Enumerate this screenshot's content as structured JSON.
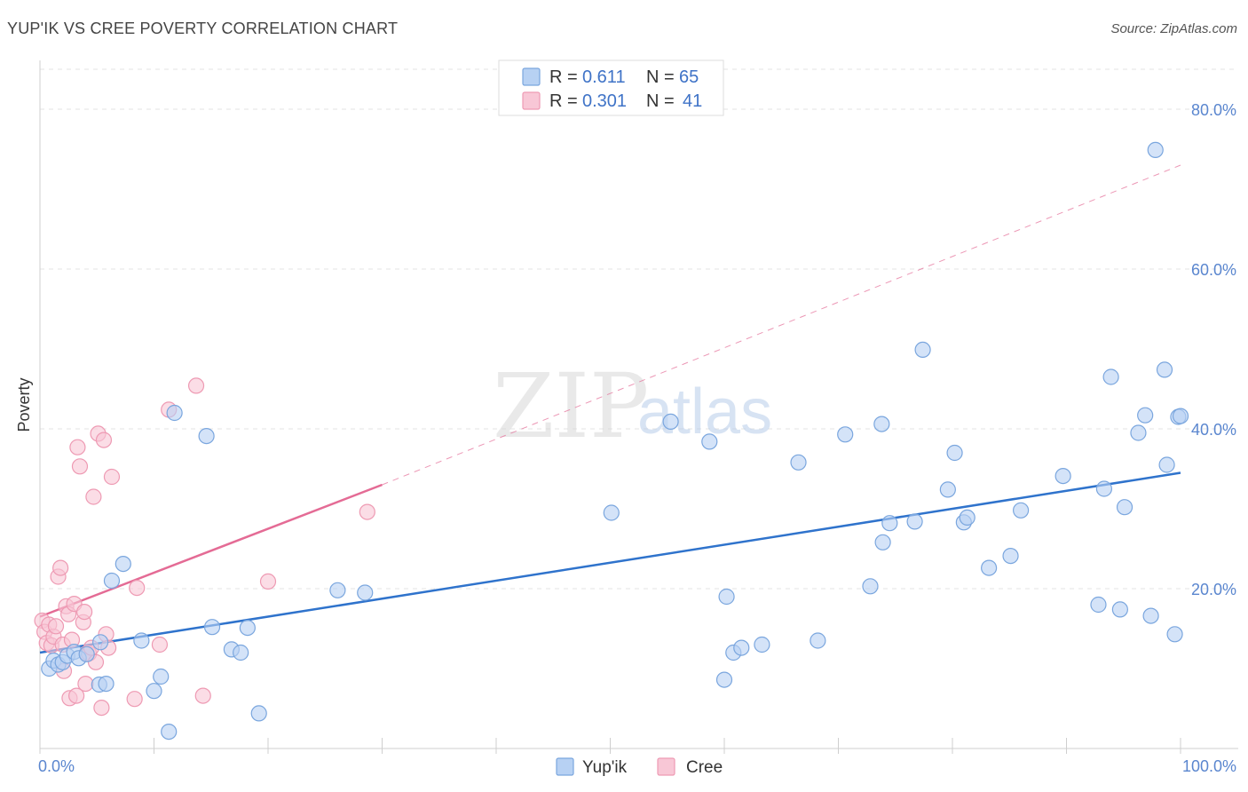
{
  "title": "YUP'IK VS CREE POVERTY CORRELATION CHART",
  "source": "Source: ZipAtlas.com",
  "watermark": {
    "zip": "ZIP",
    "atlas": "atlas"
  },
  "legend": {
    "rows": [
      {
        "r_label": "R =",
        "r_value": "0.611",
        "n_label": "N =",
        "n_value": "65"
      },
      {
        "r_label": "R =",
        "r_value": "0.301",
        "n_label": "N =",
        "n_value": "41"
      }
    ]
  },
  "colors": {
    "yupik_fill": "#b7d1f3",
    "yupik_stroke": "#7aa6de",
    "yupik_line": "#2f73cc",
    "cree_fill": "#f8c7d6",
    "cree_stroke": "#ee9ab3",
    "cree_line": "#e46b95"
  },
  "chart_data": {
    "type": "scatter",
    "title": "YUP'IK VS CREE POVERTY CORRELATION CHART",
    "xlabel": "",
    "ylabel": "Poverty",
    "xlim": [
      0,
      100
    ],
    "ylim": [
      0,
      85
    ],
    "x_tick_labels": [
      "0.0%",
      "100.0%"
    ],
    "y_ticks": [
      20,
      40,
      60,
      80
    ],
    "y_tick_labels": [
      "20.0%",
      "40.0%",
      "60.0%",
      "80.0%"
    ],
    "grid": true,
    "legend_position": "top-center",
    "series": [
      {
        "name": "Yup'ik",
        "r": 0.611,
        "n": 65,
        "trend": {
          "x0": 0,
          "y0": 12.0,
          "x1": 100,
          "y1": 34.5
        },
        "points": [
          [
            0.8,
            10.0
          ],
          [
            1.2,
            11.0
          ],
          [
            1.6,
            10.5
          ],
          [
            2.0,
            10.8
          ],
          [
            2.4,
            11.6
          ],
          [
            3.0,
            12.1
          ],
          [
            3.4,
            11.3
          ],
          [
            4.1,
            11.8
          ],
          [
            5.2,
            8.0
          ],
          [
            5.8,
            8.1
          ],
          [
            5.3,
            13.3
          ],
          [
            6.3,
            21.0
          ],
          [
            7.3,
            23.1
          ],
          [
            8.9,
            13.5
          ],
          [
            10.0,
            7.2
          ],
          [
            10.6,
            9.0
          ],
          [
            11.3,
            2.1
          ],
          [
            11.8,
            42.0
          ],
          [
            14.6,
            39.1
          ],
          [
            15.1,
            15.2
          ],
          [
            16.8,
            12.4
          ],
          [
            17.6,
            12.0
          ],
          [
            18.2,
            15.1
          ],
          [
            19.2,
            4.4
          ],
          [
            26.1,
            19.8
          ],
          [
            28.5,
            19.5
          ],
          [
            50.1,
            29.5
          ],
          [
            55.3,
            40.9
          ],
          [
            58.7,
            38.4
          ],
          [
            60.0,
            8.6
          ],
          [
            60.2,
            19.0
          ],
          [
            60.8,
            12.0
          ],
          [
            61.5,
            12.6
          ],
          [
            63.3,
            13.0
          ],
          [
            66.5,
            35.8
          ],
          [
            68.2,
            13.5
          ],
          [
            70.6,
            39.3
          ],
          [
            72.8,
            20.3
          ],
          [
            73.8,
            40.6
          ],
          [
            73.9,
            25.8
          ],
          [
            74.5,
            28.2
          ],
          [
            76.7,
            28.4
          ],
          [
            77.4,
            49.9
          ],
          [
            79.6,
            32.4
          ],
          [
            80.2,
            37.0
          ],
          [
            81.0,
            28.3
          ],
          [
            81.3,
            28.9
          ],
          [
            83.2,
            22.6
          ],
          [
            85.1,
            24.1
          ],
          [
            86.0,
            29.8
          ],
          [
            89.7,
            34.1
          ],
          [
            92.8,
            18.0
          ],
          [
            93.3,
            32.5
          ],
          [
            93.9,
            46.5
          ],
          [
            94.7,
            17.4
          ],
          [
            95.1,
            30.2
          ],
          [
            96.3,
            39.5
          ],
          [
            96.9,
            41.7
          ],
          [
            97.4,
            16.6
          ],
          [
            97.8,
            74.9
          ],
          [
            98.6,
            47.4
          ],
          [
            98.8,
            35.5
          ],
          [
            99.5,
            14.3
          ],
          [
            99.8,
            41.5
          ],
          [
            100.0,
            41.6
          ]
        ]
      },
      {
        "name": "Cree",
        "r": 0.301,
        "n": 41,
        "trend": {
          "x0": 0,
          "y0": 16.5,
          "x1": 30,
          "y1": 33.0,
          "dash_x1": 100,
          "dash_y1": 73.0
        },
        "points": [
          [
            0.2,
            16.0
          ],
          [
            0.4,
            14.6
          ],
          [
            0.6,
            13.2
          ],
          [
            0.8,
            15.5
          ],
          [
            1.0,
            12.9
          ],
          [
            1.2,
            14.0
          ],
          [
            1.4,
            15.3
          ],
          [
            1.6,
            21.5
          ],
          [
            1.8,
            22.6
          ],
          [
            2.0,
            13.0
          ],
          [
            2.1,
            9.7
          ],
          [
            2.3,
            17.8
          ],
          [
            2.5,
            16.8
          ],
          [
            2.6,
            6.3
          ],
          [
            2.8,
            13.6
          ],
          [
            3.0,
            18.1
          ],
          [
            3.2,
            6.6
          ],
          [
            3.3,
            37.7
          ],
          [
            3.5,
            35.3
          ],
          [
            3.8,
            15.8
          ],
          [
            3.9,
            17.1
          ],
          [
            4.0,
            8.1
          ],
          [
            4.1,
            11.9
          ],
          [
            4.3,
            11.9
          ],
          [
            4.5,
            12.6
          ],
          [
            4.7,
            31.5
          ],
          [
            4.9,
            10.8
          ],
          [
            5.1,
            39.4
          ],
          [
            5.4,
            5.1
          ],
          [
            5.6,
            38.6
          ],
          [
            5.8,
            14.3
          ],
          [
            6.0,
            12.6
          ],
          [
            6.3,
            34.0
          ],
          [
            8.3,
            6.2
          ],
          [
            8.5,
            20.1
          ],
          [
            10.5,
            13.0
          ],
          [
            11.3,
            42.4
          ],
          [
            13.7,
            45.4
          ],
          [
            14.3,
            6.6
          ],
          [
            20.0,
            20.9
          ],
          [
            28.7,
            29.6
          ]
        ]
      }
    ]
  },
  "bottom_legend": {
    "items": [
      {
        "label": "Yup'ik"
      },
      {
        "label": "Cree"
      }
    ]
  }
}
